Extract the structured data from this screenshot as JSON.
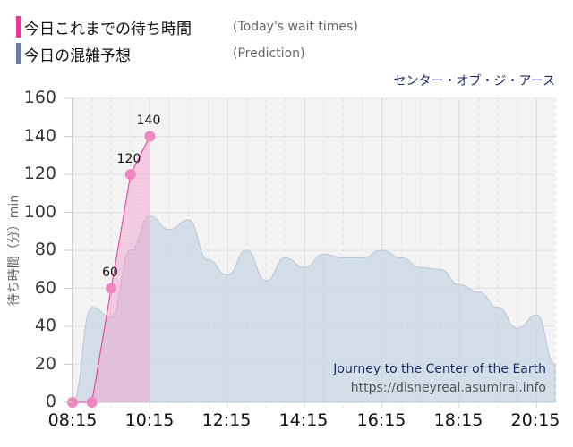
{
  "legend": {
    "items": [
      {
        "jp": "今日これまでの待ち時間",
        "en": "(Today's wait times)",
        "color": "#e8399b"
      },
      {
        "jp": "今日の混雑予想",
        "en": "(Prediction)",
        "color": "#6b80a8"
      }
    ]
  },
  "attraction": {
    "name_jp": "センター・オブ・ジ・アース",
    "name_en": "Journey to the Center of the Earth",
    "url": "https://disneyreal.asumirai.info"
  },
  "axis": {
    "ylabel": "待ち時間（分）min",
    "yticks": [
      "160",
      "140",
      "120",
      "100",
      "80",
      "60",
      "40",
      "20",
      "0"
    ],
    "xticks": [
      "08:15",
      "10:15",
      "12:15",
      "14:15",
      "16:15",
      "18:15",
      "20:15"
    ]
  },
  "chart_data": {
    "type": "area",
    "title": "センター・オブ・ジ・アース",
    "subtitle": "Journey to the Center of the Earth",
    "xlabel": "",
    "ylabel": "待ち時間（分）min",
    "ylim": [
      0,
      160
    ],
    "yticks": [
      0,
      20,
      40,
      60,
      80,
      100,
      120,
      140,
      160
    ],
    "xticks": [
      "08:15",
      "10:15",
      "12:15",
      "14:15",
      "16:15",
      "18:15",
      "20:15"
    ],
    "grid": true,
    "legend_position": "top-left",
    "series": [
      {
        "name": "今日これまでの待ち時間 (Today's wait times)",
        "color": "#e8399b",
        "x": [
          "08:15",
          "08:45",
          "09:15",
          "09:45",
          "10:15"
        ],
        "values": [
          0,
          0,
          60,
          120,
          140
        ],
        "data_labels": [
          "",
          "",
          "60",
          "120",
          "140"
        ]
      },
      {
        "name": "今日の混雑予想 (Prediction)",
        "color": "#6b80a8",
        "x": [
          "08:15",
          "08:45",
          "09:15",
          "09:45",
          "10:15",
          "10:45",
          "11:15",
          "11:45",
          "12:15",
          "12:45",
          "13:15",
          "13:45",
          "14:15",
          "14:45",
          "15:15",
          "15:45",
          "16:15",
          "16:45",
          "17:15",
          "17:45",
          "18:15",
          "18:45",
          "19:15",
          "19:45",
          "20:15",
          "20:45"
        ],
        "values": [
          0,
          50,
          45,
          80,
          98,
          91,
          96,
          75,
          67,
          80,
          64,
          76,
          71,
          78,
          76,
          76,
          80,
          76,
          71,
          70,
          62,
          58,
          50,
          39,
          46,
          20
        ]
      }
    ],
    "annotations": [
      "Journey to the Center of the Earth",
      "https://disneyreal.asumirai.info"
    ]
  }
}
